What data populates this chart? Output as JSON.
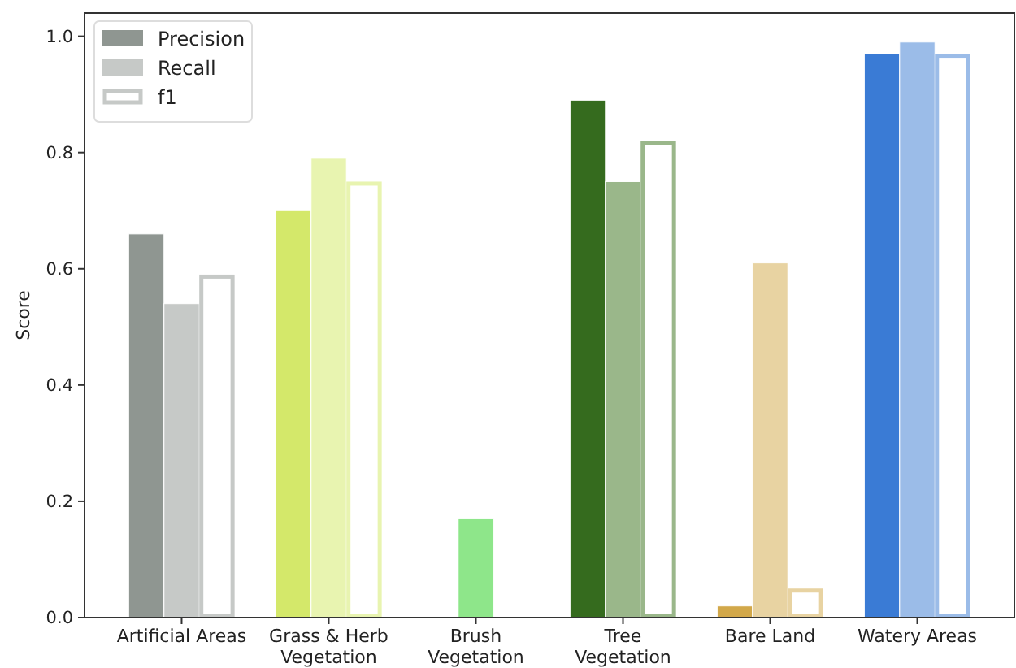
{
  "chart_data": {
    "type": "bar",
    "ylabel": "Score",
    "categories": [
      "Artificial Areas",
      "Grass & Herb\nVegetation",
      "Brush\nVegetation",
      "Tree\nVegetation",
      "Bare Land",
      "Watery Areas"
    ],
    "series": [
      {
        "name": "Precision",
        "color": "#8f9691",
        "colors": [
          "#8f9691",
          "#d4e86a",
          "#8ee68a",
          "#356b1e",
          "#d2a84a",
          "#3a7bd5"
        ],
        "values": [
          0.66,
          0.7,
          0,
          0.89,
          0.02,
          0.97
        ]
      },
      {
        "name": "Recall",
        "color": "#c6c9c7",
        "colors": [
          "#c6c9c7",
          "#e8f4b0",
          "#8ee68a",
          "#9ab78a",
          "#e8d3a2",
          "#9bbce8"
        ],
        "values": [
          0.54,
          0.79,
          0.17,
          0.75,
          0.61,
          0.99
        ]
      },
      {
        "name": "f1",
        "color": "#ffffff",
        "colors": [
          "#c6c9c7",
          "#e8f4b0",
          "#8ee68a",
          "#9ab78a",
          "#e8d3a2",
          "#9bbce8"
        ],
        "values": [
          0.59,
          0.75,
          0,
          0.82,
          0.05,
          0.97
        ]
      }
    ],
    "ylim": [
      0,
      1.04
    ],
    "yticks": [
      {
        "value": 0,
        "label": "0.0"
      },
      0.2,
      0.4,
      0.6,
      0.8,
      {
        "value": 1,
        "label": "1.0"
      }
    ],
    "grid": false,
    "legend": "top left"
  }
}
